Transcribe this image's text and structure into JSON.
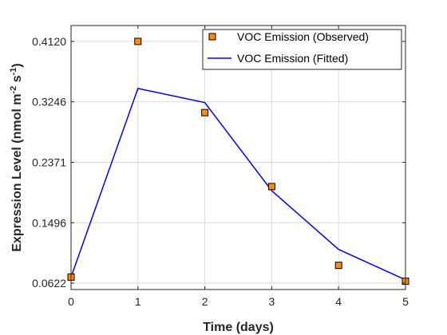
{
  "chart_data": {
    "type": "line",
    "xlabel": "Time (days)",
    "ylabel": {
      "base": "Expression Level (nmol m",
      "sup1": "-2",
      "mid": " s",
      "sup2": "-1",
      "end": ")"
    },
    "x_ticks": [
      0,
      1,
      2,
      3,
      4,
      5
    ],
    "y_ticks": [
      "0.0622",
      "0.1496",
      "0.2371",
      "0.3246",
      "0.4120"
    ],
    "xlim": [
      0,
      5
    ],
    "ylim": [
      0.053,
      0.435
    ],
    "grid": true,
    "legend_position": "top-right",
    "series": [
      {
        "name": "VOC Emission (Observed)",
        "style": "markers",
        "color": "#ff8c00",
        "edge_color": "#000000",
        "x": [
          0,
          1,
          2,
          3,
          4,
          5
        ],
        "y": [
          0.071,
          0.412,
          0.309,
          0.202,
          0.088,
          0.065
        ]
      },
      {
        "name": "VOC Emission (Fitted)",
        "style": "line",
        "color": "#0000ff",
        "x": [
          0,
          1,
          2,
          3,
          4,
          5
        ],
        "y": [
          0.071,
          0.344,
          0.3235,
          0.196,
          0.111,
          0.067
        ]
      }
    ]
  }
}
